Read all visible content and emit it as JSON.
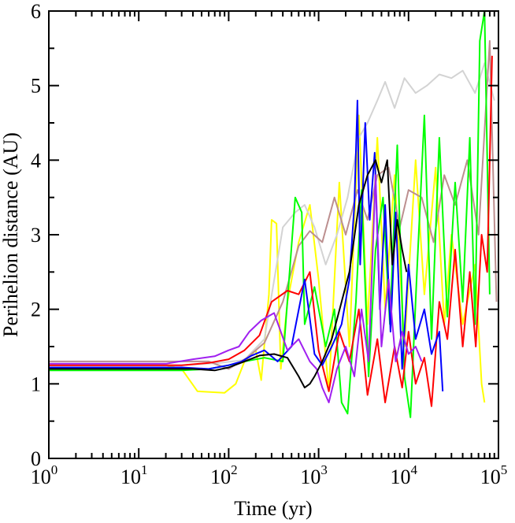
{
  "chart_data": {
    "type": "line",
    "title": "",
    "xlabel": "Time (yr)",
    "ylabel": "Perihelion distance (AU)",
    "xscale": "log",
    "xlim": [
      1,
      100000
    ],
    "ylim": [
      0,
      6
    ],
    "grid": false,
    "legend": "none",
    "x_ticks": [
      {
        "base": "10",
        "exp": "0",
        "value": 1
      },
      {
        "base": "10",
        "exp": "1",
        "value": 10
      },
      {
        "base": "10",
        "exp": "2",
        "value": 100
      },
      {
        "base": "10",
        "exp": "3",
        "value": 1000
      },
      {
        "base": "10",
        "exp": "4",
        "value": 10000
      },
      {
        "base": "10",
        "exp": "5",
        "value": 100000
      }
    ],
    "y_ticks": [
      "0",
      "1",
      "2",
      "3",
      "4",
      "5",
      "6"
    ],
    "series": [
      {
        "color": "#ffff00",
        "x": [
          1,
          20,
          30,
          45,
          90,
          120,
          150,
          200,
          230,
          280,
          300,
          340,
          380,
          450,
          600,
          800,
          1000,
          1300,
          1700,
          2200,
          2800,
          3500,
          4500,
          5500,
          7000,
          9000,
          12000,
          15000,
          20000,
          25000,
          30000,
          40000,
          55000,
          65000,
          70000
        ],
        "y": [
          1.25,
          1.25,
          1.2,
          0.9,
          0.88,
          1.0,
          1.3,
          1.45,
          1.05,
          2.2,
          3.2,
          3.15,
          1.2,
          2.1,
          2.9,
          3.4,
          2.4,
          0.9,
          3.7,
          1.5,
          4.6,
          1.8,
          4.3,
          2.0,
          3.8,
          1.5,
          4.0,
          2.2,
          3.9,
          1.8,
          3.0,
          1.8,
          2.6,
          1.0,
          0.75
        ]
      },
      {
        "color": "#d3d3d3",
        "x": [
          1,
          30,
          80,
          150,
          250,
          400,
          550,
          700,
          900,
          1200,
          1600,
          2100,
          2800,
          3500,
          4500,
          5500,
          7000,
          9000,
          12000,
          16000,
          22000,
          30000,
          40000,
          55000,
          70000,
          90000
        ],
        "y": [
          1.25,
          1.25,
          1.28,
          1.32,
          1.6,
          3.1,
          3.3,
          3.4,
          3.1,
          2.6,
          3.0,
          3.5,
          4.3,
          4.5,
          4.8,
          5.05,
          4.7,
          5.1,
          4.9,
          5.0,
          5.15,
          5.1,
          5.2,
          4.9,
          5.3,
          4.8
        ]
      },
      {
        "color": "#bc8f8f",
        "x": [
          1,
          30,
          60,
          100,
          160,
          250,
          400,
          600,
          800,
          1100,
          1500,
          2000,
          2700,
          3500,
          4500,
          6000,
          8000,
          10000,
          14000,
          19000,
          25000,
          33000,
          45000,
          60000,
          80000,
          95000
        ],
        "y": [
          1.3,
          1.3,
          1.3,
          1.2,
          1.35,
          1.55,
          2.1,
          2.85,
          3.05,
          2.9,
          3.5,
          3.0,
          3.6,
          3.2,
          3.8,
          3.9,
          3.1,
          3.6,
          3.5,
          2.9,
          3.8,
          3.4,
          4.0,
          3.0,
          5.6,
          2.1
        ]
      },
      {
        "color": "#00ff00",
        "x": [
          1,
          30,
          60,
          100,
          150,
          250,
          400,
          550,
          650,
          700,
          900,
          1200,
          1500,
          1800,
          2100,
          2600,
          3000,
          3600,
          4300,
          5200,
          6200,
          7500,
          9000,
          10500,
          12500,
          15000,
          18000,
          22000,
          27000,
          33000,
          40000,
          48000,
          55000,
          62000,
          70000,
          80000
        ],
        "y": [
          1.18,
          1.18,
          1.2,
          1.25,
          1.3,
          1.35,
          1.3,
          3.5,
          3.3,
          1.8,
          2.3,
          1.5,
          2.0,
          0.75,
          0.6,
          2.1,
          3.6,
          1.1,
          2.8,
          3.5,
          1.8,
          4.2,
          1.1,
          0.55,
          2.6,
          4.6,
          1.6,
          4.3,
          1.9,
          3.7,
          2.1,
          4.3,
          1.8,
          5.6,
          6.0,
          2.2
        ]
      },
      {
        "color": "#ff0000",
        "x": [
          1,
          30,
          60,
          100,
          150,
          220,
          300,
          450,
          600,
          800,
          1000,
          1300,
          1700,
          2200,
          2800,
          3500,
          4500,
          5500,
          7000,
          8500,
          10000,
          12000,
          15000,
          18000,
          22000,
          27000,
          33000,
          40000,
          48000,
          56000,
          65000,
          75000,
          85000
        ],
        "y": [
          1.25,
          1.25,
          1.28,
          1.33,
          1.45,
          1.65,
          2.1,
          2.25,
          2.2,
          2.5,
          1.45,
          0.9,
          1.7,
          1.3,
          2.0,
          0.85,
          1.6,
          0.75,
          1.5,
          0.95,
          1.7,
          1.0,
          1.35,
          0.7,
          2.1,
          1.6,
          2.8,
          1.5,
          2.5,
          1.5,
          3.0,
          2.5,
          5.4
        ]
      },
      {
        "color": "#0000ff",
        "x": [
          1,
          30,
          60,
          100,
          140,
          180,
          250,
          350,
          500,
          700,
          900,
          1100,
          1400,
          1800,
          2200,
          2500,
          2700,
          2900,
          3300,
          3700,
          4200,
          4800,
          5500,
          6300,
          7200,
          8500,
          10000,
          12000,
          15000,
          18000,
          22000,
          24000
        ],
        "y": [
          1.22,
          1.22,
          1.2,
          1.25,
          1.3,
          1.38,
          1.45,
          1.3,
          1.5,
          2.4,
          1.4,
          1.25,
          1.5,
          1.8,
          2.4,
          3.4,
          4.8,
          2.6,
          4.5,
          3.2,
          4.1,
          2.0,
          3.4,
          1.7,
          3.3,
          1.2,
          2.6,
          1.6,
          2.0,
          1.4,
          1.7,
          0.9
        ]
      },
      {
        "color": "#a020f0",
        "x": [
          1,
          20,
          40,
          70,
          100,
          130,
          170,
          230,
          320,
          450,
          600,
          800,
          950,
          1100,
          1300,
          1600,
          2000,
          2500,
          3000,
          3600,
          4300,
          5000,
          6000,
          7200,
          8500,
          10000,
          12000,
          14000
        ],
        "y": [
          1.27,
          1.27,
          1.33,
          1.37,
          1.45,
          1.5,
          1.7,
          1.85,
          1.95,
          1.45,
          1.6,
          1.3,
          1.2,
          0.95,
          0.75,
          1.2,
          1.5,
          1.1,
          2.0,
          1.3,
          3.8,
          1.5,
          2.4,
          1.3,
          1.7,
          1.4,
          1.5,
          1.3
        ]
      },
      {
        "color": "#000000",
        "x": [
          1,
          40,
          70,
          100,
          150,
          220,
          320,
          450,
          600,
          700,
          800,
          900,
          1100,
          1400,
          1800,
          2200,
          2800,
          3500,
          4300,
          5000,
          5800,
          6600,
          7500,
          8500,
          9500
        ],
        "y": [
          1.2,
          1.2,
          1.18,
          1.22,
          1.3,
          1.38,
          1.4,
          1.35,
          1.1,
          0.95,
          1.0,
          1.1,
          1.3,
          1.6,
          2.1,
          2.5,
          3.4,
          3.8,
          4.0,
          3.7,
          4.0,
          2.6,
          3.2,
          2.8,
          2.5
        ]
      }
    ]
  }
}
